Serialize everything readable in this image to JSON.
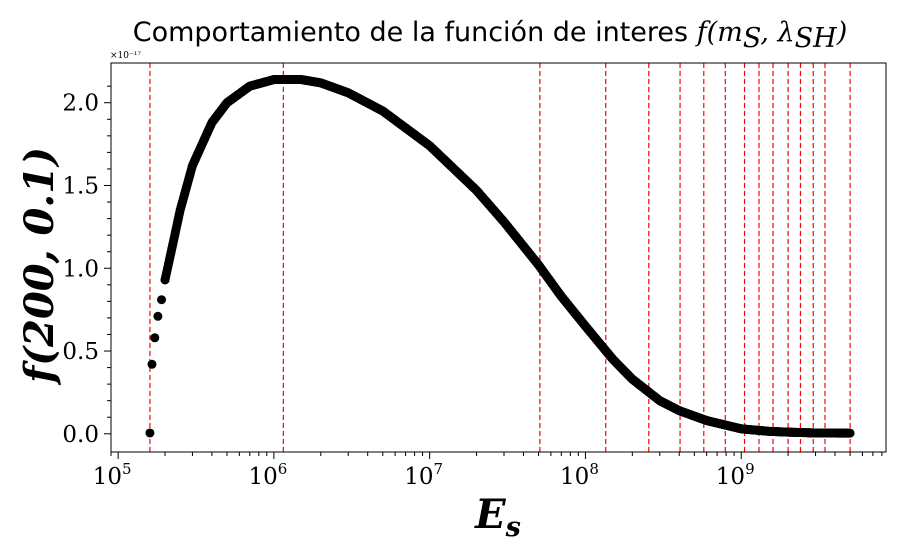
{
  "chart_data": {
    "type": "scatter",
    "title": "Comportamiento de la función de interes f(m_S, λ_SH)",
    "title_text": "Comportamiento de la función de interes ",
    "title_math": "f(m",
    "title_math_sub1": "S",
    "title_math_mid": ", λ",
    "title_math_sub2": "SH",
    "title_math_end": ")",
    "xlabel": "E",
    "xlabel_sub": "s",
    "ylabel": "f(200, 0.1)",
    "x_scale": "log",
    "xlim": [
      90000,
      8500000000
    ],
    "ylim": [
      -0.11,
      2.24
    ],
    "y_multiplier": "×10⁻¹⁷",
    "x_ticks": [
      {
        "value": 100000,
        "base": "10",
        "exp": "5"
      },
      {
        "value": 1000000,
        "base": "10",
        "exp": "6"
      },
      {
        "value": 10000000,
        "base": "10",
        "exp": "7"
      },
      {
        "value": 100000000,
        "base": "10",
        "exp": "8"
      },
      {
        "value": 1000000000,
        "base": "10",
        "exp": "9"
      }
    ],
    "y_ticks": [
      {
        "value": 0.0,
        "label": "0.0"
      },
      {
        "value": 0.5,
        "label": "0.5"
      },
      {
        "value": 1.0,
        "label": "1.0"
      },
      {
        "value": 1.5,
        "label": "1.5"
      },
      {
        "value": 2.0,
        "label": "2.0"
      }
    ],
    "curve_points": [
      {
        "x": 160000,
        "y": 0.005
      },
      {
        "x": 165000,
        "y": 0.42
      },
      {
        "x": 172000,
        "y": 0.58
      },
      {
        "x": 180000,
        "y": 0.71
      },
      {
        "x": 190000,
        "y": 0.81
      },
      {
        "x": 200000,
        "y": 0.93
      },
      {
        "x": 225000,
        "y": 1.15
      },
      {
        "x": 250000,
        "y": 1.35
      },
      {
        "x": 300000,
        "y": 1.62
      },
      {
        "x": 400000,
        "y": 1.88
      },
      {
        "x": 500000,
        "y": 2.0
      },
      {
        "x": 700000,
        "y": 2.1
      },
      {
        "x": 1000000,
        "y": 2.14
      },
      {
        "x": 1500000,
        "y": 2.14
      },
      {
        "x": 2000000,
        "y": 2.12
      },
      {
        "x": 3000000,
        "y": 2.06
      },
      {
        "x": 5000000,
        "y": 1.95
      },
      {
        "x": 10000000,
        "y": 1.74
      },
      {
        "x": 20000000,
        "y": 1.47
      },
      {
        "x": 30000000,
        "y": 1.28
      },
      {
        "x": 50000000,
        "y": 1.02
      },
      {
        "x": 70000000,
        "y": 0.83
      },
      {
        "x": 100000000,
        "y": 0.65
      },
      {
        "x": 150000000,
        "y": 0.45
      },
      {
        "x": 200000000,
        "y": 0.33
      },
      {
        "x": 300000000,
        "y": 0.2
      },
      {
        "x": 400000000,
        "y": 0.14
      },
      {
        "x": 600000000,
        "y": 0.08
      },
      {
        "x": 1000000000,
        "y": 0.03
      },
      {
        "x": 1500000000,
        "y": 0.015
      },
      {
        "x": 2000000000,
        "y": 0.01
      },
      {
        "x": 3000000000,
        "y": 0.005
      },
      {
        "x": 5000000000,
        "y": 0.004
      }
    ],
    "vertical_lines": [
      160000,
      1150000,
      51000000,
      135000000,
      255000000,
      405000000,
      575000000,
      790000000,
      1050000000,
      1300000000,
      1600000000,
      2000000000,
      2400000000,
      2900000000,
      3450000000,
      5000000000
    ],
    "colors": {
      "points": "#000000",
      "vlines": "#ff0000",
      "axes": "#000000"
    }
  }
}
